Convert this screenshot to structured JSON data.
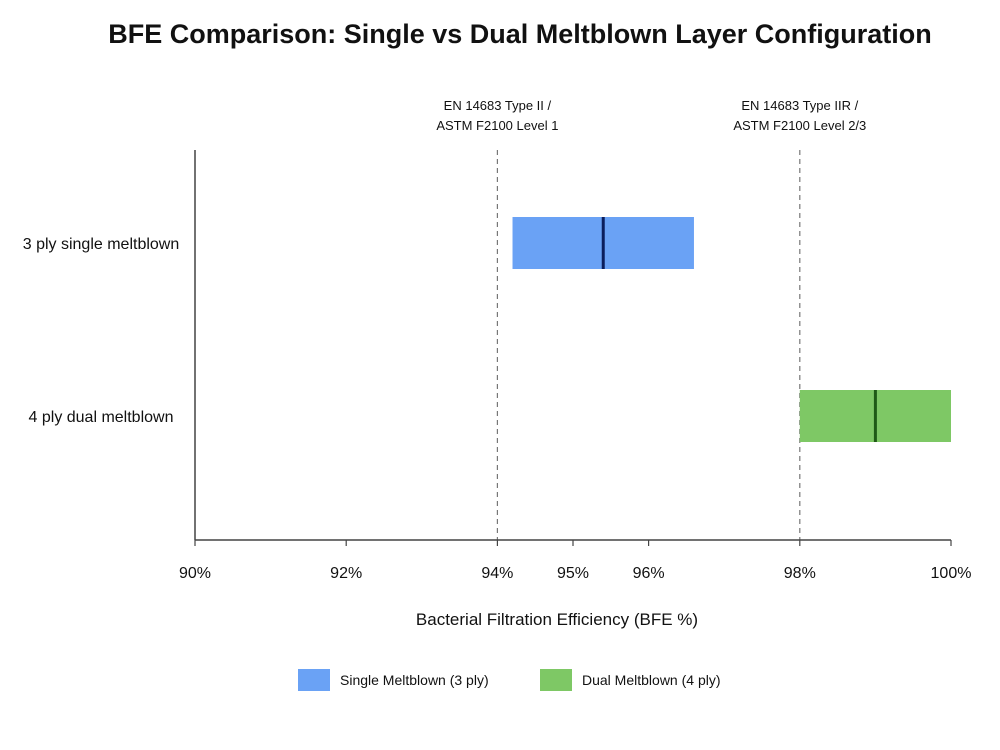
{
  "chart_data": {
    "type": "bar",
    "subtype": "floating-range",
    "title": "BFE Comparison: Single vs Dual Meltblown Layer Configuration",
    "xlabel": "Bacterial Filtration Efficiency (BFE %)",
    "ylabel": "",
    "xlim": [
      90,
      100
    ],
    "x_ticks": [
      90,
      92,
      94,
      95,
      96,
      98,
      100
    ],
    "x_tick_labels": [
      "90%",
      "92%",
      "94%",
      "95%",
      "96%",
      "98%",
      "100%"
    ],
    "grid": false,
    "legend_position": "bottom",
    "categories": [
      "3 ply single meltblown",
      "4 ply dual meltblown"
    ],
    "series": [
      {
        "name": "Single Meltblown (3 ply)",
        "category": "3 ply single meltblown",
        "min": 94.2,
        "max": 96.6,
        "median": 95.4,
        "color": "#6aa2f5",
        "median_color": "#0b1e5c"
      },
      {
        "name": "Dual Meltblown (4 ply)",
        "category": "4 ply dual meltblown",
        "min": 98.0,
        "max": 100.0,
        "median": 99.0,
        "color": "#7ec865",
        "median_color": "#1f5a16"
      }
    ],
    "reference_lines": [
      {
        "x": 94.0,
        "label_lines": [
          "EN 14683 Type II /",
          "ASTM F2100 Level 1"
        ]
      },
      {
        "x": 98.0,
        "label_lines": [
          "EN 14683 Type IIR /",
          "ASTM F2100 Level 2/3"
        ]
      }
    ]
  }
}
